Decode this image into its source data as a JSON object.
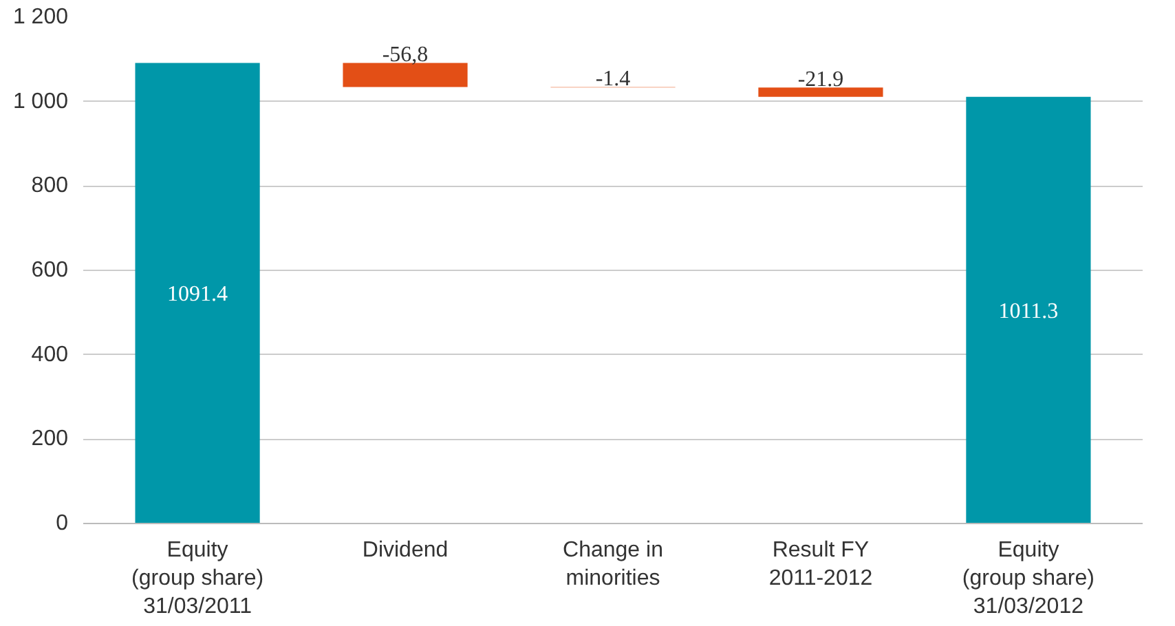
{
  "chart_data": {
    "type": "bar",
    "categories": [
      "Equity\n(group share)\n31/03/2011",
      "Dividend",
      "Change in\nminorities",
      "Result FY\n2011-2012",
      "Equity\n(group share)\n31/03/2012"
    ],
    "values": [
      1091.4,
      -56.8,
      -1.4,
      -21.9,
      1011.3
    ],
    "base": [
      0,
      1091.4,
      1034.6,
      1033.2,
      0
    ],
    "colors": [
      "#0097a9",
      "#e34f16",
      "#f08a63",
      "#e34f16",
      "#0097a9"
    ],
    "value_labels": [
      "1091.4",
      "-56,8",
      "-1.4",
      "-21.9",
      "1011.3"
    ],
    "ylim": [
      0,
      1200
    ],
    "yticks": [
      0,
      200,
      400,
      600,
      800,
      {
        "value": 1000,
        "label": "1 000"
      },
      {
        "value": 1200,
        "label": "1 200"
      }
    ],
    "grid": "y"
  }
}
